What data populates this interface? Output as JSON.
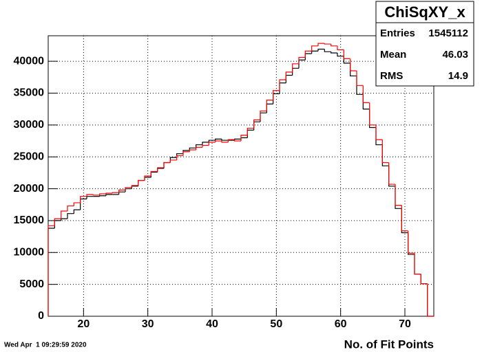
{
  "chart_data": {
    "type": "histogram",
    "x_label": "No. of Fit Points",
    "timestamp": "Wed Apr  1 09:29:59 2020",
    "bins": [
      14.5,
      15.5,
      16.5,
      17.5,
      18.5,
      19.5,
      20.5,
      21.5,
      22.5,
      23.5,
      24.5,
      25.5,
      26.5,
      27.5,
      28.5,
      29.5,
      30.5,
      31.5,
      32.5,
      33.5,
      34.5,
      35.5,
      36.5,
      37.5,
      38.5,
      39.5,
      40.5,
      41.5,
      42.5,
      43.5,
      44.5,
      45.5,
      46.5,
      47.5,
      48.5,
      49.5,
      50.5,
      51.5,
      52.5,
      53.5,
      54.5,
      55.5,
      56.5,
      57.5,
      58.5,
      59.5,
      60.5,
      61.5,
      62.5,
      63.5,
      64.5,
      65.5,
      66.5,
      67.5,
      68.5,
      69.5,
      70.5,
      71.5,
      72.5,
      73.5,
      74.5
    ],
    "series": [
      {
        "color": "#000000",
        "values": [
          13800,
          15000,
          15300,
          16100,
          16700,
          18400,
          18800,
          18800,
          18900,
          19100,
          19100,
          19500,
          20000,
          20400,
          21300,
          21800,
          22600,
          23200,
          24100,
          24900,
          25500,
          26000,
          26400,
          26900,
          27300,
          27600,
          27800,
          27600,
          27600,
          27800,
          28000,
          29200,
          30500,
          31900,
          33300,
          34900,
          36600,
          37800,
          38900,
          40200,
          41200,
          41600,
          41900,
          41500,
          41300,
          40800,
          39700,
          37700,
          34800,
          32500,
          29600,
          26900,
          23600,
          20400,
          16900,
          13100,
          9700,
          6600,
          5100,
          0
        ]
      },
      {
        "color": "#ff0000",
        "values": [
          14200,
          15300,
          16500,
          17300,
          17800,
          18800,
          19100,
          19000,
          19200,
          19300,
          19400,
          19800,
          20200,
          20500,
          21300,
          22000,
          22700,
          23300,
          24100,
          24500,
          25200,
          25800,
          26100,
          26500,
          26800,
          27300,
          27500,
          27300,
          27700,
          27500,
          28400,
          29500,
          30800,
          32200,
          33900,
          35400,
          37100,
          38300,
          39600,
          40600,
          41600,
          42400,
          42800,
          42700,
          42400,
          41800,
          40400,
          38500,
          36200,
          33500,
          30000,
          27700,
          24100,
          20700,
          17400,
          13400,
          9900,
          6600,
          5100,
          0
        ]
      }
    ],
    "xlim": [
      14.5,
      74.5
    ],
    "xticks": [
      20,
      30,
      40,
      50,
      60,
      70
    ],
    "ylim": [
      0,
      44000
    ],
    "yticks": [
      0,
      5000,
      10000,
      15000,
      20000,
      25000,
      30000,
      35000,
      40000
    ],
    "grid": true,
    "stats": {
      "title": "ChiSqXY_x",
      "rows": [
        {
          "label": "Entries",
          "value": 1545112
        },
        {
          "label": "Mean",
          "value": 46.03
        },
        {
          "label": "RMS",
          "value": 14.9
        }
      ]
    }
  }
}
